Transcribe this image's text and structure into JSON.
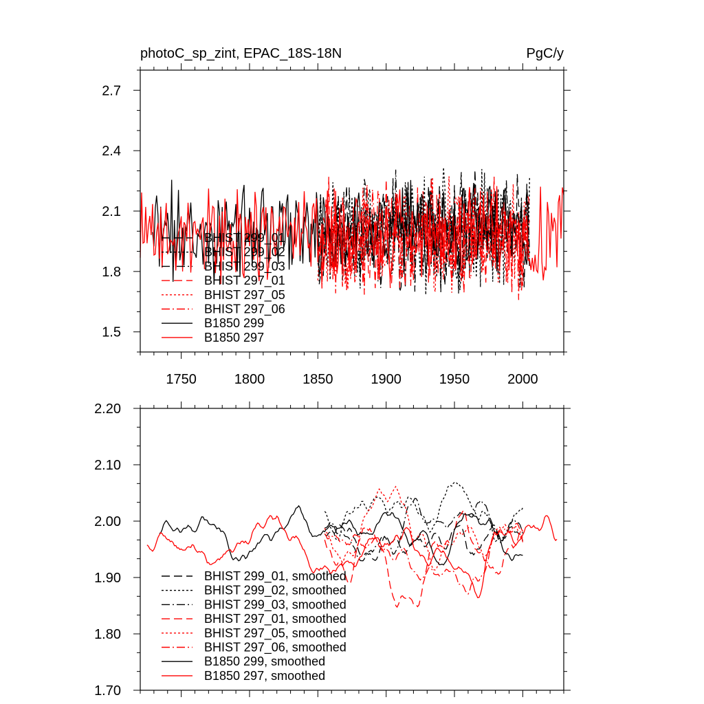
{
  "chart_data": [
    {
      "type": "line",
      "title": "photoC_sp_zint, EPAC_18S-18N",
      "units": "PgC/y",
      "xlim": [
        1720,
        2030
      ],
      "ylim": [
        1.4,
        2.8
      ],
      "xticks": [
        1750,
        1800,
        1850,
        1900,
        1950,
        2000
      ],
      "xtick_labels": [
        "1750",
        "1800",
        "1850",
        "1900",
        "1950",
        "2000"
      ],
      "yticks": [
        1.5,
        1.8,
        2.1,
        2.4,
        2.7
      ],
      "ytick_labels": [
        "1.5",
        "1.8",
        "2.1",
        "2.4",
        "2.7"
      ],
      "legend_position": "lower-left",
      "series": [
        {
          "name": "BHIST 299_01",
          "color": "#000000",
          "dash": "long-dash",
          "start": 1850,
          "end": 2005,
          "center": 2.0,
          "amp": 0.42,
          "seed": 11
        },
        {
          "name": "BHIST 299_02",
          "color": "#000000",
          "dash": "dot",
          "start": 1850,
          "end": 2005,
          "center": 2.0,
          "amp": 0.44,
          "seed": 23
        },
        {
          "name": "BHIST 299_03",
          "color": "#000000",
          "dash": "dash-dot",
          "start": 1850,
          "end": 2005,
          "center": 2.0,
          "amp": 0.42,
          "seed": 37
        },
        {
          "name": "BHIST 297_01",
          "color": "#ff0000",
          "dash": "long-dash",
          "start": 1850,
          "end": 2005,
          "center": 1.97,
          "amp": 0.42,
          "seed": 41
        },
        {
          "name": "BHIST 297_05",
          "color": "#ff0000",
          "dash": "dot",
          "start": 1850,
          "end": 2005,
          "center": 1.97,
          "amp": 0.42,
          "seed": 53
        },
        {
          "name": "BHIST 297_06",
          "color": "#ff0000",
          "dash": "dash-dot",
          "start": 1850,
          "end": 2005,
          "center": 1.97,
          "amp": 0.42,
          "seed": 67
        },
        {
          "name": "B1850 299",
          "color": "#000000",
          "dash": "solid",
          "start": 1729,
          "end": 2004,
          "center": 2.0,
          "amp": 0.36,
          "seed": 71
        },
        {
          "name": "B1850 297",
          "color": "#ff0000",
          "dash": "solid",
          "start": 1720,
          "end": 2030,
          "center": 1.98,
          "amp": 0.38,
          "seed": 89
        }
      ]
    },
    {
      "type": "line",
      "xlim": [
        1720,
        2030
      ],
      "ylim": [
        1.7,
        2.2
      ],
      "xticks": [
        1750,
        1800,
        1850,
        1900,
        1950,
        2000
      ],
      "yticks": [
        1.7,
        1.8,
        1.9,
        2.0,
        2.1,
        2.2
      ],
      "ytick_labels": [
        "1.70",
        "1.80",
        "1.90",
        "2.00",
        "2.10",
        "2.20"
      ],
      "legend_position": "lower-left",
      "series": [
        {
          "name": "BHIST 299_01, smoothed",
          "color": "#000000",
          "dash": "long-dash",
          "start": 1855,
          "end": 2000,
          "center": 1.98,
          "amp": 0.09,
          "seed": 111
        },
        {
          "name": "BHIST 299_02, smoothed",
          "color": "#000000",
          "dash": "dot",
          "start": 1855,
          "end": 2000,
          "center": 2.02,
          "amp": 0.1,
          "seed": 123
        },
        {
          "name": "BHIST 299_03, smoothed",
          "color": "#000000",
          "dash": "dash-dot",
          "start": 1855,
          "end": 2000,
          "center": 1.99,
          "amp": 0.08,
          "seed": 137
        },
        {
          "name": "BHIST 297_01, smoothed",
          "color": "#ff0000",
          "dash": "long-dash",
          "start": 1855,
          "end": 2000,
          "center": 1.97,
          "amp": 0.12,
          "seed": 141
        },
        {
          "name": "BHIST 297_05, smoothed",
          "color": "#ff0000",
          "dash": "dot",
          "start": 1855,
          "end": 2000,
          "center": 1.99,
          "amp": 0.1,
          "seed": 153
        },
        {
          "name": "BHIST 297_06, smoothed",
          "color": "#ff0000",
          "dash": "dash-dot",
          "start": 1855,
          "end": 2000,
          "center": 1.98,
          "amp": 0.1,
          "seed": 167
        },
        {
          "name": "B1850 299, smoothed",
          "color": "#000000",
          "dash": "solid",
          "start": 1734,
          "end": 2000,
          "center": 1.98,
          "amp": 0.08,
          "seed": 171
        },
        {
          "name": "B1850 297, smoothed",
          "color": "#ff0000",
          "dash": "solid",
          "start": 1725,
          "end": 2025,
          "center": 1.96,
          "amp": 0.09,
          "seed": 189
        }
      ]
    }
  ]
}
